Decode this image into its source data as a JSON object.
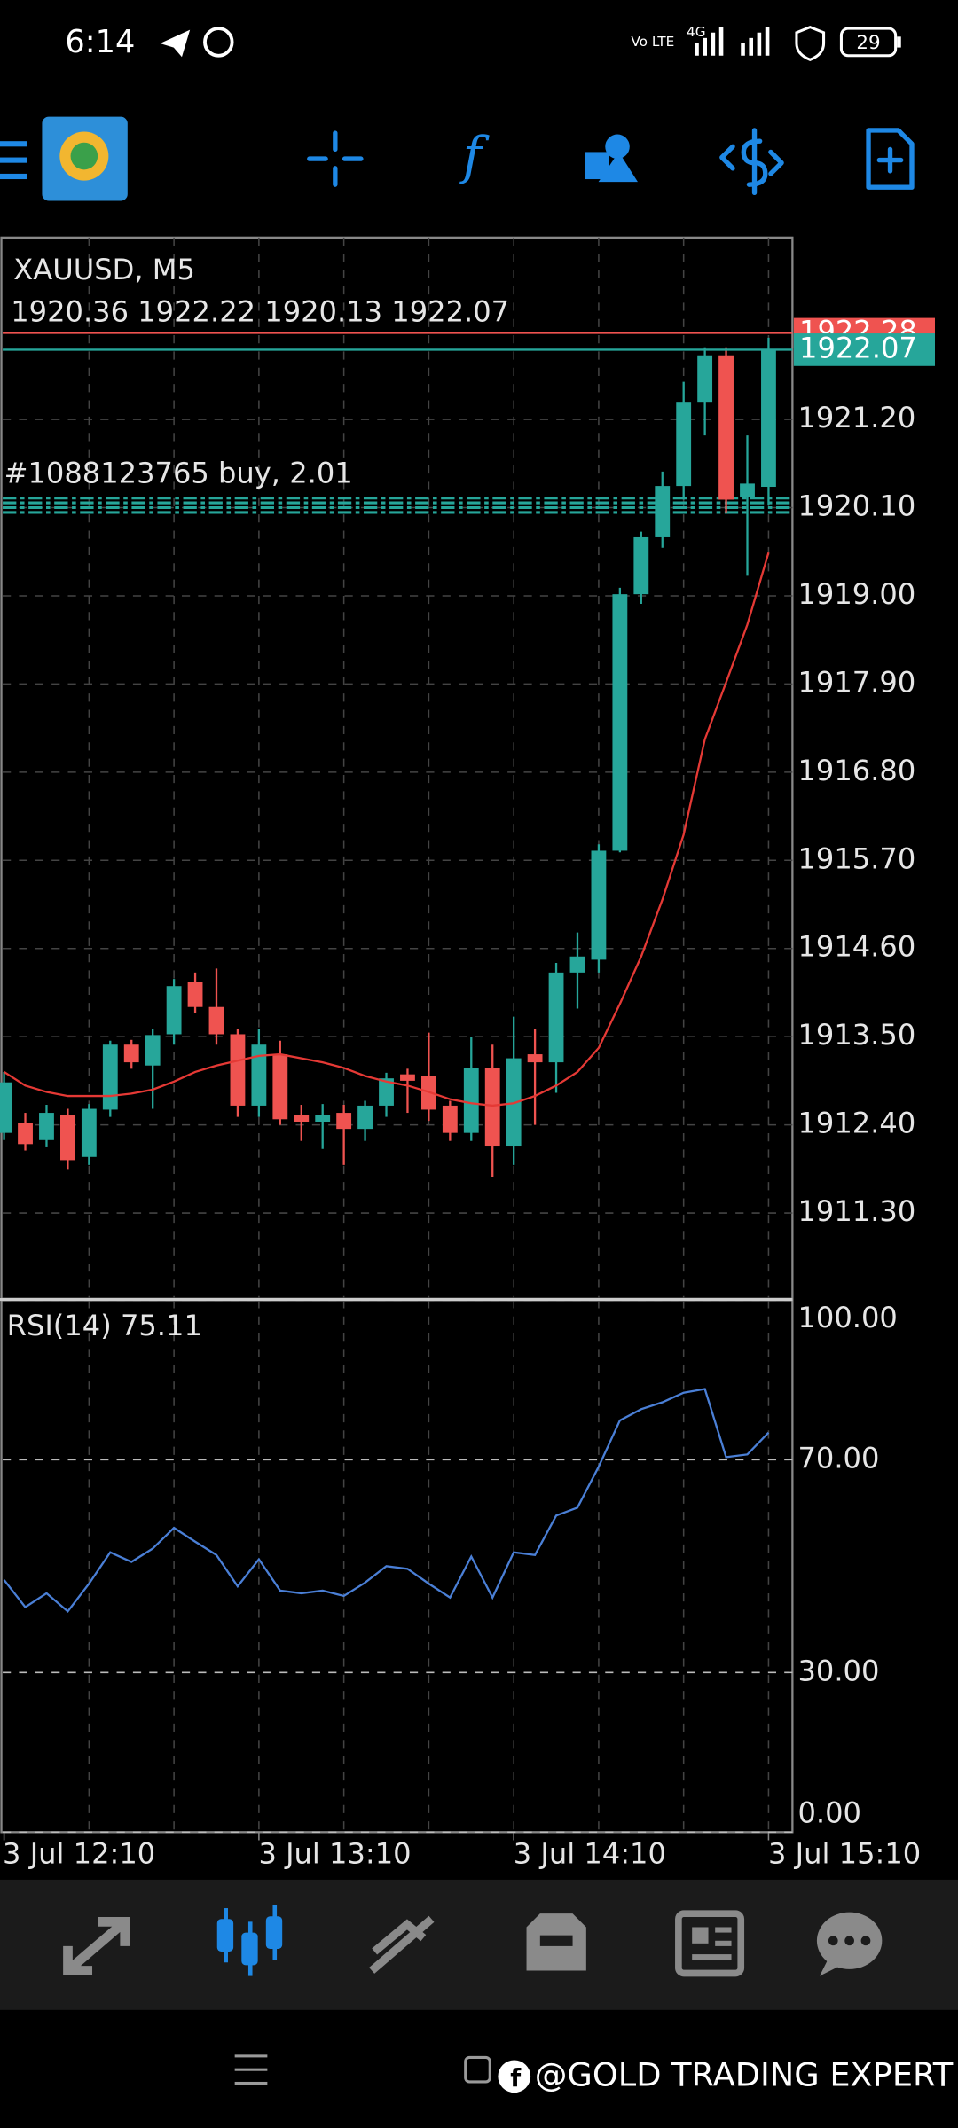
{
  "status_bar": {
    "time": "6:14",
    "network": "Vo LTE",
    "signal": "4G",
    "battery": "29"
  },
  "chart_data": [
    {
      "type": "candlestick",
      "title": "XAUUSD, M5",
      "subtitle": "1920.36 1922.22 1920.13 1922.07",
      "categories": [
        "3 Jul 12:10",
        null,
        null,
        null,
        null,
        null,
        null,
        null,
        null,
        null,
        null,
        null,
        "3 Jul 13:10",
        null,
        null,
        null,
        null,
        null,
        null,
        null,
        null,
        null,
        null,
        null,
        "3 Jul 14:10",
        null,
        null,
        null,
        null,
        null,
        null,
        null,
        null,
        null,
        null,
        null,
        "3 Jul 15:10"
      ],
      "open": [
        1912.3,
        1912.42,
        1912.21,
        1912.52,
        1912.0,
        1912.59,
        1913.4,
        1913.14,
        1913.53,
        1914.18,
        1913.87,
        1913.53,
        1912.64,
        1913.28,
        1912.52,
        1912.44,
        1912.55,
        1912.35,
        1912.64,
        1913.03,
        1913.01,
        1912.64,
        1912.3,
        1913.11,
        1912.13,
        1913.28,
        1913.18,
        1914.3,
        1914.46,
        1915.82,
        1919.02,
        1919.73,
        1920.37,
        1921.42,
        1922.0,
        1920.23,
        1920.36
      ],
      "high": [
        1913.06,
        1912.55,
        1912.65,
        1912.6,
        1912.66,
        1913.45,
        1913.46,
        1913.6,
        1914.22,
        1914.3,
        1914.35,
        1913.6,
        1913.6,
        1913.45,
        1912.65,
        1912.66,
        1912.65,
        1912.7,
        1913.05,
        1913.1,
        1913.55,
        1912.7,
        1913.5,
        1913.4,
        1913.75,
        1913.6,
        1914.42,
        1914.8,
        1915.9,
        1919.1,
        1919.8,
        1920.55,
        1921.67,
        1922.1,
        1922.1,
        1921.0,
        1922.22
      ],
      "low": [
        1912.21,
        1912.08,
        1912.12,
        1911.85,
        1911.9,
        1912.5,
        1913.1,
        1912.6,
        1913.4,
        1913.8,
        1913.4,
        1912.5,
        1912.5,
        1912.4,
        1912.2,
        1912.1,
        1911.9,
        1912.2,
        1912.5,
        1912.55,
        1912.45,
        1912.2,
        1912.2,
        1911.75,
        1911.9,
        1912.4,
        1912.8,
        1913.85,
        1914.3,
        1915.8,
        1918.9,
        1919.6,
        1920.2,
        1921.0,
        1920.03,
        1919.25,
        1920.13
      ],
      "close": [
        1912.93,
        1912.16,
        1912.55,
        1911.96,
        1912.6,
        1913.4,
        1913.18,
        1913.52,
        1914.13,
        1913.87,
        1913.53,
        1912.64,
        1913.4,
        1912.47,
        1912.44,
        1912.52,
        1912.35,
        1912.64,
        1912.98,
        1912.95,
        1912.59,
        1912.3,
        1913.11,
        1912.13,
        1913.23,
        1913.18,
        1914.3,
        1914.5,
        1915.82,
        1919.02,
        1919.73,
        1920.37,
        1921.42,
        1922.0,
        1920.2,
        1920.4,
        1922.07
      ],
      "up_color": "#26a69a",
      "down_color": "#ef5350",
      "moving_average": {
        "color": "#e53935",
        "values": [
          1913.06,
          1912.89,
          1912.81,
          1912.76,
          1912.76,
          1912.76,
          1912.79,
          1912.84,
          1912.94,
          1913.06,
          1913.14,
          1913.2,
          1913.26,
          1913.28,
          1913.23,
          1913.18,
          1913.11,
          1913.01,
          1912.94,
          1912.89,
          1912.81,
          1912.72,
          1912.67,
          1912.64,
          1912.67,
          1912.76,
          1912.89,
          1913.06,
          1913.36,
          1913.91,
          1914.5,
          1915.21,
          1916.02,
          1917.21,
          1917.92,
          1918.64,
          1919.54
        ]
      },
      "ask": 1922.28,
      "ask_color": "#ef5350",
      "bid": 1922.07,
      "bid_color": "#26a69a",
      "order": {
        "label": "#1088123765 buy, 2.01",
        "levels": [
          1920.22,
          1920.16,
          1920.1,
          1920.04
        ],
        "color": "#26a69a"
      },
      "ylim": [
        1910.23,
        1923.47
      ],
      "yticks": [
        {
          "value": 1921.2,
          "label": "1921.20"
        },
        {
          "value": 1920.1,
          "label": "1920.10"
        },
        {
          "value": 1919.0,
          "label": "1919.00"
        },
        {
          "value": 1917.9,
          "label": "1917.90"
        },
        {
          "value": 1916.8,
          "label": "1916.80"
        },
        {
          "value": 1915.7,
          "label": "1915.70"
        },
        {
          "value": 1914.6,
          "label": "1914.60"
        },
        {
          "value": 1913.5,
          "label": "1913.50"
        },
        {
          "value": 1912.4,
          "label": "1912.40"
        },
        {
          "value": 1911.3,
          "label": "1911.30"
        }
      ],
      "grid": true
    },
    {
      "type": "line",
      "title": "RSI(14) 75.11",
      "color": "#4a7fd6",
      "values": [
        47.4,
        42.3,
        44.9,
        41.5,
        46.7,
        52.6,
        50.8,
        53.3,
        57.2,
        54.6,
        52.1,
        46.2,
        51.3,
        45.4,
        44.9,
        45.4,
        44.4,
        46.9,
        50.0,
        49.5,
        46.7,
        44.1,
        51.8,
        44.1,
        52.6,
        52.1,
        59.5,
        61.0,
        68.7,
        77.4,
        79.5,
        80.8,
        82.6,
        83.3,
        70.5,
        71.0,
        75.11
      ],
      "ylim": [
        0,
        100
      ],
      "yticks": [
        {
          "value": 100,
          "label": "100.00"
        },
        {
          "value": 70,
          "label": "70.00"
        },
        {
          "value": 30,
          "label": "30.00"
        },
        {
          "value": 0,
          "label": "0.00"
        }
      ],
      "grid": true
    }
  ],
  "watermark": "@GOLD TRADING EXPERT"
}
